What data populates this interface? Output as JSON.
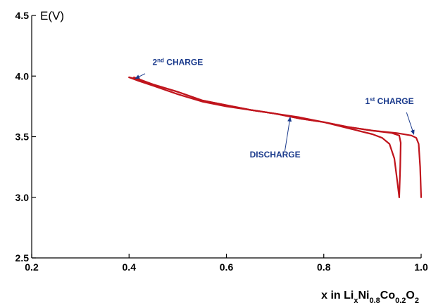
{
  "chart_data": {
    "type": "line",
    "title": "",
    "ylabel": "E(V)",
    "xlabel": {
      "parts": [
        {
          "text": "x in Li",
          "sub": false
        },
        {
          "text": "x",
          "sub": true
        },
        {
          "text": "Ni",
          "sub": false
        },
        {
          "text": "0.8",
          "sub": true
        },
        {
          "text": "Co",
          "sub": false
        },
        {
          "text": "0.2",
          "sub": true
        },
        {
          "text": "O",
          "sub": false
        },
        {
          "text": "2",
          "sub": true
        }
      ]
    },
    "xlim": [
      0.2,
      1.0
    ],
    "ylim": [
      2.5,
      4.5
    ],
    "xticks": [
      "0.2",
      "0.4",
      "0.6",
      "0.8",
      "1.0"
    ],
    "yticks": [
      "2.5",
      "3.0",
      "3.5",
      "4.0",
      "4.5"
    ],
    "grid": false,
    "line_color": "#c0141c",
    "annotation_color": "#1a3a8c",
    "series": [
      {
        "points": [
          [
            1.0,
            3.0
          ],
          [
            0.998,
            3.25
          ],
          [
            0.995,
            3.44
          ],
          [
            0.99,
            3.49
          ],
          [
            0.98,
            3.51
          ],
          [
            0.95,
            3.53
          ],
          [
            0.9,
            3.55
          ],
          [
            0.85,
            3.58
          ],
          [
            0.8,
            3.62
          ],
          [
            0.75,
            3.65
          ],
          [
            0.7,
            3.69
          ],
          [
            0.65,
            3.72
          ],
          [
            0.6,
            3.76
          ],
          [
            0.55,
            3.8
          ],
          [
            0.5,
            3.87
          ],
          [
            0.45,
            3.93
          ],
          [
            0.42,
            3.97
          ],
          [
            0.4,
            3.99
          ]
        ]
      },
      {
        "points": [
          [
            0.4,
            3.99
          ],
          [
            0.42,
            3.96
          ],
          [
            0.45,
            3.92
          ],
          [
            0.5,
            3.85
          ],
          [
            0.55,
            3.79
          ],
          [
            0.6,
            3.75
          ],
          [
            0.65,
            3.72
          ],
          [
            0.7,
            3.69
          ],
          [
            0.75,
            3.66
          ],
          [
            0.8,
            3.62
          ],
          [
            0.85,
            3.57
          ],
          [
            0.9,
            3.52
          ],
          [
            0.92,
            3.49
          ],
          [
            0.935,
            3.44
          ],
          [
            0.945,
            3.32
          ],
          [
            0.952,
            3.1
          ],
          [
            0.955,
            3.0
          ]
        ]
      },
      {
        "points": [
          [
            0.955,
            3.0
          ],
          [
            0.957,
            3.25
          ],
          [
            0.958,
            3.45
          ],
          [
            0.955,
            3.51
          ],
          [
            0.94,
            3.53
          ],
          [
            0.9,
            3.55
          ],
          [
            0.85,
            3.58
          ],
          [
            0.8,
            3.62
          ],
          [
            0.75,
            3.65
          ],
          [
            0.7,
            3.69
          ],
          [
            0.65,
            3.72
          ],
          [
            0.6,
            3.76
          ],
          [
            0.55,
            3.8
          ],
          [
            0.5,
            3.87
          ],
          [
            0.45,
            3.93
          ],
          [
            0.43,
            3.96
          ],
          [
            0.41,
            3.99
          ]
        ]
      }
    ],
    "annotations": [
      {
        "id": "second-charge",
        "parts": [
          {
            "text": "2",
            "sup": false
          },
          {
            "text": "nd",
            "sup": true
          },
          {
            "text": " CHARGE",
            "sup": false
          }
        ],
        "tx": 0.5,
        "ty": 4.09,
        "ax": 0.433,
        "ay": 4.02,
        "adx": 0.413,
        "ady": 3.98
      },
      {
        "id": "first-charge",
        "parts": [
          {
            "text": "1",
            "sup": false
          },
          {
            "text": "st",
            "sup": true
          },
          {
            "text": " CHARGE",
            "sup": false
          }
        ],
        "tx": 0.935,
        "ty": 3.77,
        "ax": 0.97,
        "ay": 3.7,
        "adx": 0.985,
        "ady": 3.52
      },
      {
        "id": "discharge",
        "parts": [
          {
            "text": "DISCHARGE",
            "sup": false
          }
        ],
        "tx": 0.7,
        "ty": 3.33,
        "ax": 0.72,
        "ay": 3.38,
        "adx": 0.731,
        "ady": 3.66
      }
    ]
  }
}
